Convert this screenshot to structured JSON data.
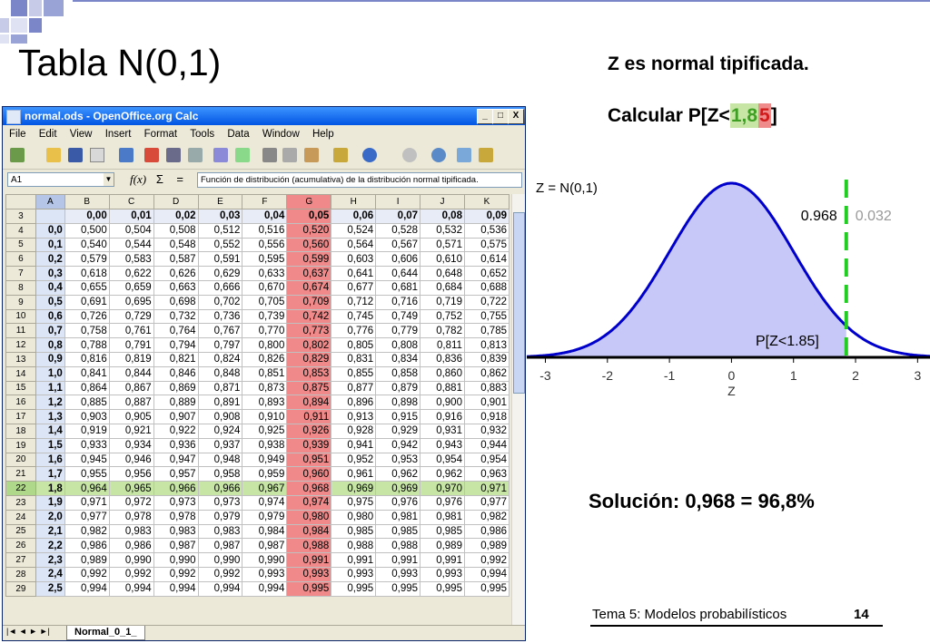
{
  "slide": {
    "title": "Tabla N(0,1)",
    "header_right": "Z es normal tipificada.",
    "calc_prefix": "Calcular P[Z<",
    "calc_green": "1,8",
    "calc_red": "5",
    "calc_suffix": "]",
    "solution": "Solución: 0,968 = 96,8%",
    "footer_text": "Tema 5: Modelos probabilísticos",
    "page_number": "14"
  },
  "window": {
    "title": "normal.ods - OpenOffice.org Calc",
    "minimize_label": "_",
    "maximize_label": "□",
    "close_label": "X",
    "menus": [
      "File",
      "Edit",
      "View",
      "Insert",
      "Format",
      "Tools",
      "Data",
      "Window",
      "Help"
    ],
    "name_box": "A1",
    "fx_label": "f(x)",
    "sum_label": "Σ",
    "equals_label": "=",
    "formula_text": "Función de distribución (acumulativa) de la distribución normal tipificada.",
    "sheet_tab": "Normal_0_1_"
  },
  "sheet": {
    "col_headers": [
      "",
      "A",
      "B",
      "C",
      "D",
      "E",
      "F",
      "G",
      "H",
      "I",
      "J",
      "K"
    ],
    "header_row_num": "3",
    "header_values": [
      "0,00",
      "0,01",
      "0,02",
      "0,03",
      "0,04",
      "0,05",
      "0,06",
      "0,07",
      "0,08",
      "0,09"
    ],
    "rows": [
      {
        "n": "4",
        "z": "0,0",
        "v": [
          "0,500",
          "0,504",
          "0,508",
          "0,512",
          "0,516",
          "0,520",
          "0,524",
          "0,528",
          "0,532",
          "0,536"
        ]
      },
      {
        "n": "5",
        "z": "0,1",
        "v": [
          "0,540",
          "0,544",
          "0,548",
          "0,552",
          "0,556",
          "0,560",
          "0,564",
          "0,567",
          "0,571",
          "0,575"
        ]
      },
      {
        "n": "6",
        "z": "0,2",
        "v": [
          "0,579",
          "0,583",
          "0,587",
          "0,591",
          "0,595",
          "0,599",
          "0,603",
          "0,606",
          "0,610",
          "0,614"
        ]
      },
      {
        "n": "7",
        "z": "0,3",
        "v": [
          "0,618",
          "0,622",
          "0,626",
          "0,629",
          "0,633",
          "0,637",
          "0,641",
          "0,644",
          "0,648",
          "0,652"
        ]
      },
      {
        "n": "8",
        "z": "0,4",
        "v": [
          "0,655",
          "0,659",
          "0,663",
          "0,666",
          "0,670",
          "0,674",
          "0,677",
          "0,681",
          "0,684",
          "0,688"
        ]
      },
      {
        "n": "9",
        "z": "0,5",
        "v": [
          "0,691",
          "0,695",
          "0,698",
          "0,702",
          "0,705",
          "0,709",
          "0,712",
          "0,716",
          "0,719",
          "0,722"
        ]
      },
      {
        "n": "10",
        "z": "0,6",
        "v": [
          "0,726",
          "0,729",
          "0,732",
          "0,736",
          "0,739",
          "0,742",
          "0,745",
          "0,749",
          "0,752",
          "0,755"
        ]
      },
      {
        "n": "11",
        "z": "0,7",
        "v": [
          "0,758",
          "0,761",
          "0,764",
          "0,767",
          "0,770",
          "0,773",
          "0,776",
          "0,779",
          "0,782",
          "0,785"
        ]
      },
      {
        "n": "12",
        "z": "0,8",
        "v": [
          "0,788",
          "0,791",
          "0,794",
          "0,797",
          "0,800",
          "0,802",
          "0,805",
          "0,808",
          "0,811",
          "0,813"
        ]
      },
      {
        "n": "13",
        "z": "0,9",
        "v": [
          "0,816",
          "0,819",
          "0,821",
          "0,824",
          "0,826",
          "0,829",
          "0,831",
          "0,834",
          "0,836",
          "0,839"
        ]
      },
      {
        "n": "14",
        "z": "1,0",
        "v": [
          "0,841",
          "0,844",
          "0,846",
          "0,848",
          "0,851",
          "0,853",
          "0,855",
          "0,858",
          "0,860",
          "0,862"
        ]
      },
      {
        "n": "15",
        "z": "1,1",
        "v": [
          "0,864",
          "0,867",
          "0,869",
          "0,871",
          "0,873",
          "0,875",
          "0,877",
          "0,879",
          "0,881",
          "0,883"
        ]
      },
      {
        "n": "16",
        "z": "1,2",
        "v": [
          "0,885",
          "0,887",
          "0,889",
          "0,891",
          "0,893",
          "0,894",
          "0,896",
          "0,898",
          "0,900",
          "0,901"
        ]
      },
      {
        "n": "17",
        "z": "1,3",
        "v": [
          "0,903",
          "0,905",
          "0,907",
          "0,908",
          "0,910",
          "0,911",
          "0,913",
          "0,915",
          "0,916",
          "0,918"
        ]
      },
      {
        "n": "18",
        "z": "1,4",
        "v": [
          "0,919",
          "0,921",
          "0,922",
          "0,924",
          "0,925",
          "0,926",
          "0,928",
          "0,929",
          "0,931",
          "0,932"
        ]
      },
      {
        "n": "19",
        "z": "1,5",
        "v": [
          "0,933",
          "0,934",
          "0,936",
          "0,937",
          "0,938",
          "0,939",
          "0,941",
          "0,942",
          "0,943",
          "0,944"
        ]
      },
      {
        "n": "20",
        "z": "1,6",
        "v": [
          "0,945",
          "0,946",
          "0,947",
          "0,948",
          "0,949",
          "0,951",
          "0,952",
          "0,953",
          "0,954",
          "0,954"
        ]
      },
      {
        "n": "21",
        "z": "1,7",
        "v": [
          "0,955",
          "0,956",
          "0,957",
          "0,958",
          "0,959",
          "0,960",
          "0,961",
          "0,962",
          "0,962",
          "0,963"
        ]
      },
      {
        "n": "22",
        "z": "1,8",
        "v": [
          "0,964",
          "0,965",
          "0,966",
          "0,966",
          "0,967",
          "0,968",
          "0,969",
          "0,969",
          "0,970",
          "0,971"
        ]
      },
      {
        "n": "23",
        "z": "1,9",
        "v": [
          "0,971",
          "0,972",
          "0,973",
          "0,973",
          "0,974",
          "0,974",
          "0,975",
          "0,976",
          "0,976",
          "0,977"
        ]
      },
      {
        "n": "24",
        "z": "2,0",
        "v": [
          "0,977",
          "0,978",
          "0,978",
          "0,979",
          "0,979",
          "0,980",
          "0,980",
          "0,981",
          "0,981",
          "0,982"
        ]
      },
      {
        "n": "25",
        "z": "2,1",
        "v": [
          "0,982",
          "0,983",
          "0,983",
          "0,983",
          "0,984",
          "0,984",
          "0,985",
          "0,985",
          "0,985",
          "0,986"
        ]
      },
      {
        "n": "26",
        "z": "2,2",
        "v": [
          "0,986",
          "0,986",
          "0,987",
          "0,987",
          "0,987",
          "0,988",
          "0,988",
          "0,988",
          "0,989",
          "0,989"
        ]
      },
      {
        "n": "27",
        "z": "2,3",
        "v": [
          "0,989",
          "0,990",
          "0,990",
          "0,990",
          "0,990",
          "0,991",
          "0,991",
          "0,991",
          "0,991",
          "0,992"
        ]
      },
      {
        "n": "28",
        "z": "2,4",
        "v": [
          "0,992",
          "0,992",
          "0,992",
          "0,992",
          "0,993",
          "0,993",
          "0,993",
          "0,993",
          "0,993",
          "0,994"
        ]
      },
      {
        "n": "29",
        "z": "2,5",
        "v": [
          "0,994",
          "0,994",
          "0,994",
          "0,994",
          "0,994",
          "0,995",
          "0,995",
          "0,995",
          "0,995",
          "0,995"
        ]
      }
    ],
    "highlight_col_index": 5,
    "highlight_row_z": "1,8"
  },
  "chart_data": {
    "type": "area",
    "title": "Z = N(0,1)",
    "xlabel": "Z",
    "ylabel": "",
    "x_ticks": [
      "-3",
      "-2",
      "-1",
      "0",
      "1",
      "2",
      "3"
    ],
    "xlim": [
      -3.3,
      3.2
    ],
    "cutoff": 1.85,
    "shaded_region_label": "P[Z<1.85]",
    "left_prob_label": "0.968",
    "right_prob_label": "0.032",
    "fill_color": "#c8c8f8",
    "curve_color": "#0000cc",
    "cutoff_color": "#22cc22"
  },
  "colors": {
    "highlight_red": "#f08a8a",
    "highlight_green": "#c7e6a6",
    "calc_green_text": "#3f9f24",
    "calc_red_text": "#d11b1b"
  }
}
